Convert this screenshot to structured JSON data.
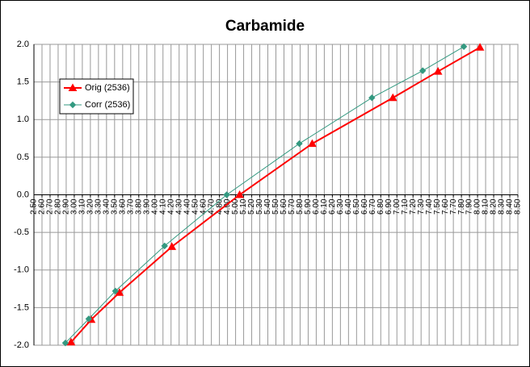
{
  "chart_data": {
    "type": "line",
    "title": "Carbamide",
    "series": [
      {
        "name": "Orig (2536)",
        "color": "#ff0000",
        "marker": "triangle",
        "x": [
          2.96,
          3.21,
          3.56,
          4.21,
          5.05,
          5.95,
          6.95,
          7.51,
          8.03
        ],
        "values": [
          -1.96,
          -1.66,
          -1.3,
          -0.69,
          0.0,
          0.68,
          1.29,
          1.64,
          1.96
        ]
      },
      {
        "name": "Corr (2536)",
        "color": "#339980",
        "marker": "diamond",
        "x": [
          2.89,
          3.18,
          3.51,
          4.12,
          4.89,
          5.79,
          6.69,
          7.32,
          7.83
        ],
        "values": [
          -1.97,
          -1.65,
          -1.28,
          -0.68,
          0.0,
          0.68,
          1.29,
          1.65,
          1.97
        ]
      }
    ],
    "xlim": [
      2.5,
      8.5
    ],
    "xticks": [
      {
        "value": 2.5,
        "label": "2.50"
      },
      {
        "value": 2.6,
        "label": "2.60"
      },
      {
        "value": 2.7,
        "label": "2.70"
      },
      {
        "value": 2.8,
        "label": "2.80"
      },
      {
        "value": 2.9,
        "label": "2.90"
      },
      {
        "value": 3.0,
        "label": "3.00"
      },
      {
        "value": 3.1,
        "label": "3.10"
      },
      {
        "value": 3.2,
        "label": "3.20"
      },
      {
        "value": 3.3,
        "label": "3.30"
      },
      {
        "value": 3.4,
        "label": "3.40"
      },
      {
        "value": 3.5,
        "label": "3.50"
      },
      {
        "value": 3.6,
        "label": "3.60"
      },
      {
        "value": 3.7,
        "label": "3.70"
      },
      {
        "value": 3.8,
        "label": "3.80"
      },
      {
        "value": 3.9,
        "label": "3.90"
      },
      {
        "value": 4.0,
        "label": "4.00"
      },
      {
        "value": 4.1,
        "label": "4.10"
      },
      {
        "value": 4.2,
        "label": "4.20"
      },
      {
        "value": 4.3,
        "label": "4.30"
      },
      {
        "value": 4.4,
        "label": "4.40"
      },
      {
        "value": 4.5,
        "label": "4.50"
      },
      {
        "value": 4.6,
        "label": "4.60"
      },
      {
        "value": 4.7,
        "label": "4.70"
      },
      {
        "value": 4.8,
        "label": "4.80"
      },
      {
        "value": 4.9,
        "label": "4.90"
      },
      {
        "value": 5.0,
        "label": "5.00"
      },
      {
        "value": 5.1,
        "label": "5.10"
      },
      {
        "value": 5.2,
        "label": "5.20"
      },
      {
        "value": 5.3,
        "label": "5.30"
      },
      {
        "value": 5.4,
        "label": "5.40"
      },
      {
        "value": 5.5,
        "label": "5.50"
      },
      {
        "value": 5.6,
        "label": "5.60"
      },
      {
        "value": 5.7,
        "label": "5.70"
      },
      {
        "value": 5.8,
        "label": "5.80"
      },
      {
        "value": 5.9,
        "label": "5.90"
      },
      {
        "value": 6.0,
        "label": "6.00"
      },
      {
        "value": 6.1,
        "label": "6.10"
      },
      {
        "value": 6.2,
        "label": "6.20"
      },
      {
        "value": 6.3,
        "label": "6.30"
      },
      {
        "value": 6.4,
        "label": "6.40"
      },
      {
        "value": 6.5,
        "label": "6.50"
      },
      {
        "value": 6.6,
        "label": "6.60"
      },
      {
        "value": 6.7,
        "label": "6.70"
      },
      {
        "value": 6.8,
        "label": "6.80"
      },
      {
        "value": 6.9,
        "label": "6.90"
      },
      {
        "value": 7.0,
        "label": "7.00"
      },
      {
        "value": 7.1,
        "label": "7.10"
      },
      {
        "value": 7.2,
        "label": "7.20"
      },
      {
        "value": 7.3,
        "label": "7.30"
      },
      {
        "value": 7.4,
        "label": "7.40"
      },
      {
        "value": 7.5,
        "label": "7.50"
      },
      {
        "value": 7.6,
        "label": "7.60"
      },
      {
        "value": 7.7,
        "label": "7.70"
      },
      {
        "value": 7.8,
        "label": "7.80"
      },
      {
        "value": 7.9,
        "label": "7.90"
      },
      {
        "value": 8.0,
        "label": "8.00"
      },
      {
        "value": 8.1,
        "label": "8.10"
      },
      {
        "value": 8.2,
        "label": "8.20"
      },
      {
        "value": 8.3,
        "label": "8.30"
      },
      {
        "value": 8.4,
        "label": "8.40"
      },
      {
        "value": 8.5,
        "label": "8.50"
      }
    ],
    "ylim": [
      -2,
      2
    ],
    "yticks": [
      {
        "value": -2,
        "label": "-2.0"
      },
      -1.5,
      {
        "value": -1,
        "label": "-1.0"
      },
      -0.5,
      {
        "value": 0,
        "label": "0.0"
      },
      0.5,
      {
        "value": 1,
        "label": "1.0"
      },
      1.5,
      {
        "value": 2,
        "label": "2.0"
      }
    ],
    "grid": true,
    "legend": "upper left"
  }
}
